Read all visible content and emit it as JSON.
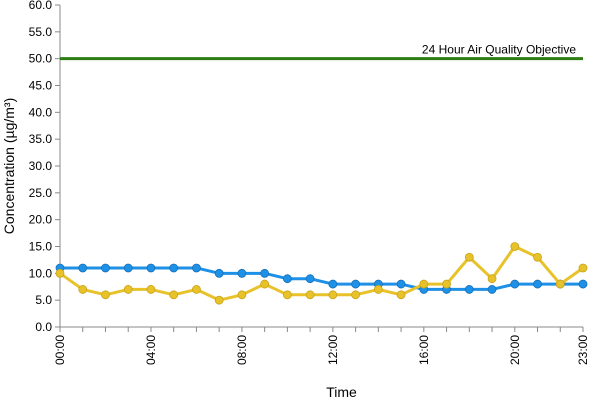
{
  "chart_data": {
    "type": "line",
    "xlabel": "Time",
    "ylabel": "Concentration (µg/m³)",
    "ylim": [
      0,
      60
    ],
    "y_ticks": [
      "0.0",
      "5.0",
      "10.0",
      "15.0",
      "20.0",
      "25.0",
      "30.0",
      "35.0",
      "40.0",
      "45.0",
      "50.0",
      "55.0",
      "60.0"
    ],
    "x_ticks": [
      "00:00",
      "04:00",
      "08:00",
      "12:00",
      "16:00",
      "20:00",
      "23:00"
    ],
    "x_tick_hours": [
      0,
      4,
      8,
      12,
      16,
      20,
      23
    ],
    "x_hours": [
      0,
      1,
      2,
      3,
      4,
      5,
      6,
      7,
      8,
      9,
      10,
      11,
      12,
      13,
      14,
      15,
      16,
      17,
      18,
      19,
      20,
      21,
      22,
      23
    ],
    "grid": false,
    "annotation": {
      "text": "24 Hour Air Quality Objective",
      "value": 50,
      "color": "#2e7d12"
    },
    "series": [
      {
        "color": "#1e90e6",
        "values": [
          11,
          11,
          11,
          11,
          11,
          11,
          11,
          10,
          10,
          10,
          9,
          9,
          8,
          8,
          8,
          8,
          7,
          7,
          7,
          7,
          8,
          8,
          8,
          8
        ]
      },
      {
        "color": "#e8c22a",
        "values": [
          10,
          7,
          6,
          7,
          7,
          6,
          7,
          5,
          6,
          8,
          6,
          6,
          6,
          6,
          7,
          6,
          8,
          8,
          13,
          9,
          15,
          13,
          8,
          11
        ]
      }
    ]
  }
}
